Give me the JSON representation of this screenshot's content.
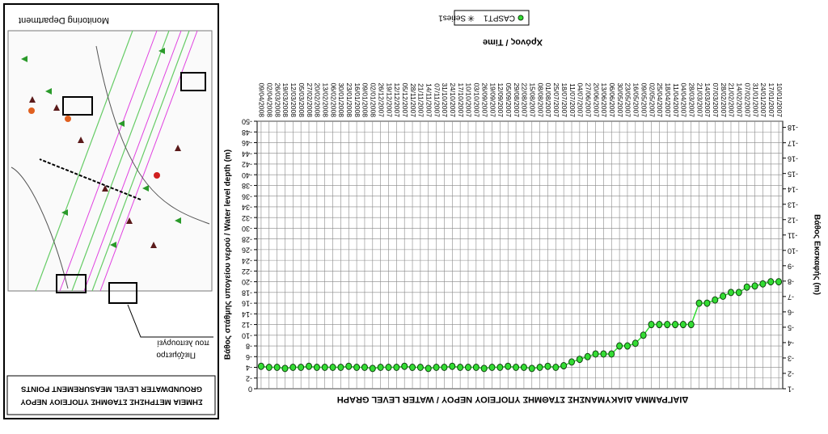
{
  "chart_data": {
    "type": "line",
    "title": "ΔΙΑΓΡΑΜΜΑ ΔΙΑΚΥΜΑΝΣΗΣ ΣΤΑΘΜΗΣ ΥΠΟΓΕΙΟΥ ΝΕΡΟΥ / WATER LEVEL GRAPH",
    "x_label": "Χρόνος / Time",
    "y_label": "Βάθος Εκσκαφής (m)",
    "y2_label": "Βάθος στάθμης υπογείου νερού / Water level depth (m)",
    "categories": [
      "10/01/2007",
      "17/01/2007",
      "24/01/2007",
      "31/01/2007",
      "07/02/2007",
      "14/02/2007",
      "21/02/2007",
      "28/02/2007",
      "07/03/2007",
      "14/03/2007",
      "21/03/2007",
      "28/03/2007",
      "04/04/2007",
      "11/04/2007",
      "18/04/2007",
      "25/04/2007",
      "02/05/2007",
      "09/05/2007",
      "16/05/2007",
      "23/05/2007",
      "30/05/2007",
      "06/06/2007",
      "13/06/2007",
      "20/06/2007",
      "27/06/2007",
      "04/07/2007",
      "11/07/2007",
      "18/07/2007",
      "25/07/2007",
      "01/08/2007",
      "08/08/2007",
      "15/08/2007",
      "22/08/2007",
      "29/08/2007",
      "05/09/2007",
      "12/09/2007",
      "19/09/2007",
      "26/09/2007",
      "03/10/2007",
      "10/10/2007",
      "17/10/2007",
      "24/10/2007",
      "31/10/2007",
      "07/11/2007",
      "14/11/2007",
      "21/11/2007",
      "28/11/2007",
      "05/12/2007",
      "12/12/2007",
      "19/12/2007",
      "26/12/2007",
      "02/01/2008",
      "09/01/2008",
      "16/01/2008",
      "23/01/2008",
      "30/01/2008",
      "06/02/2008",
      "13/02/2008",
      "20/02/2008",
      "27/02/2008",
      "05/03/2008",
      "12/03/2008",
      "19/03/2008",
      "26/03/2008",
      "02/04/2008",
      "09/04/2008"
    ],
    "series": [
      {
        "name": "CASPT1",
        "color": "#33dd33",
        "axis": "y2",
        "values": [
          -20,
          -20,
          -19.6,
          -19.2,
          -19,
          -18,
          -18,
          -17.3,
          -16.6,
          -16,
          -16,
          -12,
          -12,
          -12,
          -12,
          -12,
          -12,
          -10,
          -8.5,
          -8,
          -8,
          -6.5,
          -6.5,
          -6.5,
          -6,
          -5.5,
          -5,
          -4.3,
          -4,
          -4.2,
          -4,
          -3.8,
          -4,
          -4,
          -4.2,
          -4,
          -4,
          -3.8,
          -4,
          -4,
          -4,
          -4.2,
          -4,
          -4,
          -3.8,
          -4,
          -4,
          -4.2,
          -4,
          -4,
          -4,
          -3.8,
          -4,
          -4,
          -4.2,
          -4,
          -4,
          -4,
          -4,
          -4.2,
          -4,
          -4,
          -3.8,
          -4,
          -4,
          -4.2
        ]
      },
      {
        "name": "Series1",
        "color": "#000000",
        "axis": "y2",
        "values": [
          null,
          null,
          null,
          null,
          null,
          null,
          null,
          null,
          null,
          null,
          null,
          null,
          null,
          null,
          null,
          null,
          null,
          null,
          null,
          null,
          null,
          null,
          null,
          null,
          null,
          null,
          null,
          null,
          null,
          null,
          null,
          null,
          null,
          null,
          null,
          null,
          null,
          null,
          null,
          null,
          null,
          null,
          null,
          null,
          null,
          null,
          null,
          null,
          null,
          null,
          null,
          null,
          null,
          null,
          null,
          null,
          null,
          null,
          null,
          null,
          null,
          null,
          null,
          null,
          null,
          null
        ]
      }
    ],
    "ylim": [
      -18.4,
      -1
    ],
    "yticks": [
      -1,
      -2,
      -3,
      -4,
      -5,
      -6,
      -7,
      -8,
      -9,
      -10,
      -11,
      -12,
      -13,
      -14,
      -15,
      -16,
      -17,
      -18
    ],
    "y2lim": [
      -50,
      0
    ],
    "y2ticks": [
      0,
      -2,
      -4,
      -6,
      -8,
      -10,
      -12,
      -14,
      -16,
      -18,
      -20,
      -22,
      -24,
      -26,
      -28,
      -30,
      -32,
      -34,
      -36,
      -38,
      -40,
      -42,
      -44,
      -46,
      -48,
      -50
    ],
    "grid": true,
    "legend": "bottom"
  },
  "map_panel": {
    "title": "ΣΗΜΕΙΑ ΜΕΤΡΗΣΗΣ ΣΤΑΘΜΗΣ ΥΠΟΓΕΙΟΥ ΝΕΡΟΥ",
    "subtitle": "GROUNDWATER LEVEL MEASUREMENT POINTS",
    "callout": [
      "Πιεζόμετρο",
      "που λειτουργεί"
    ],
    "footer": "Monitoring Department"
  }
}
